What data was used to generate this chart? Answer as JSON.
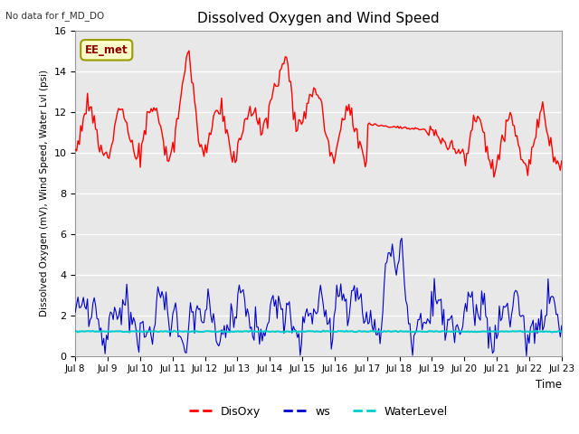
{
  "title": "Dissolved Oxygen and Wind Speed",
  "subtitle": "No data for f_MD_DO",
  "ylabel": "Dissolved Oxygen (mV), Wind Speed, Water Lvl (psi)",
  "xlabel": "Time",
  "annotation": "EE_met",
  "ylim": [
    0,
    16
  ],
  "yticks": [
    0,
    2,
    4,
    6,
    8,
    10,
    12,
    14,
    16
  ],
  "xtick_labels": [
    "Jul 8",
    "Jul 9",
    "Jul 10",
    "Jul 11",
    "Jul 12",
    "Jul 13",
    "Jul 14",
    "Jul 15",
    "Jul 16",
    "Jul 17",
    "Jul 18",
    "Jul 19",
    "Jul 20",
    "Jul 21",
    "Jul 22",
    "Jul 23"
  ],
  "water_level": 1.2,
  "disoxy_color": "#ff0000",
  "ws_color": "#0000cc",
  "water_color": "#00cccc",
  "bg_color": "#e8e8e8",
  "legend_labels": [
    "DisOxy",
    "ws",
    "WaterLevel"
  ]
}
